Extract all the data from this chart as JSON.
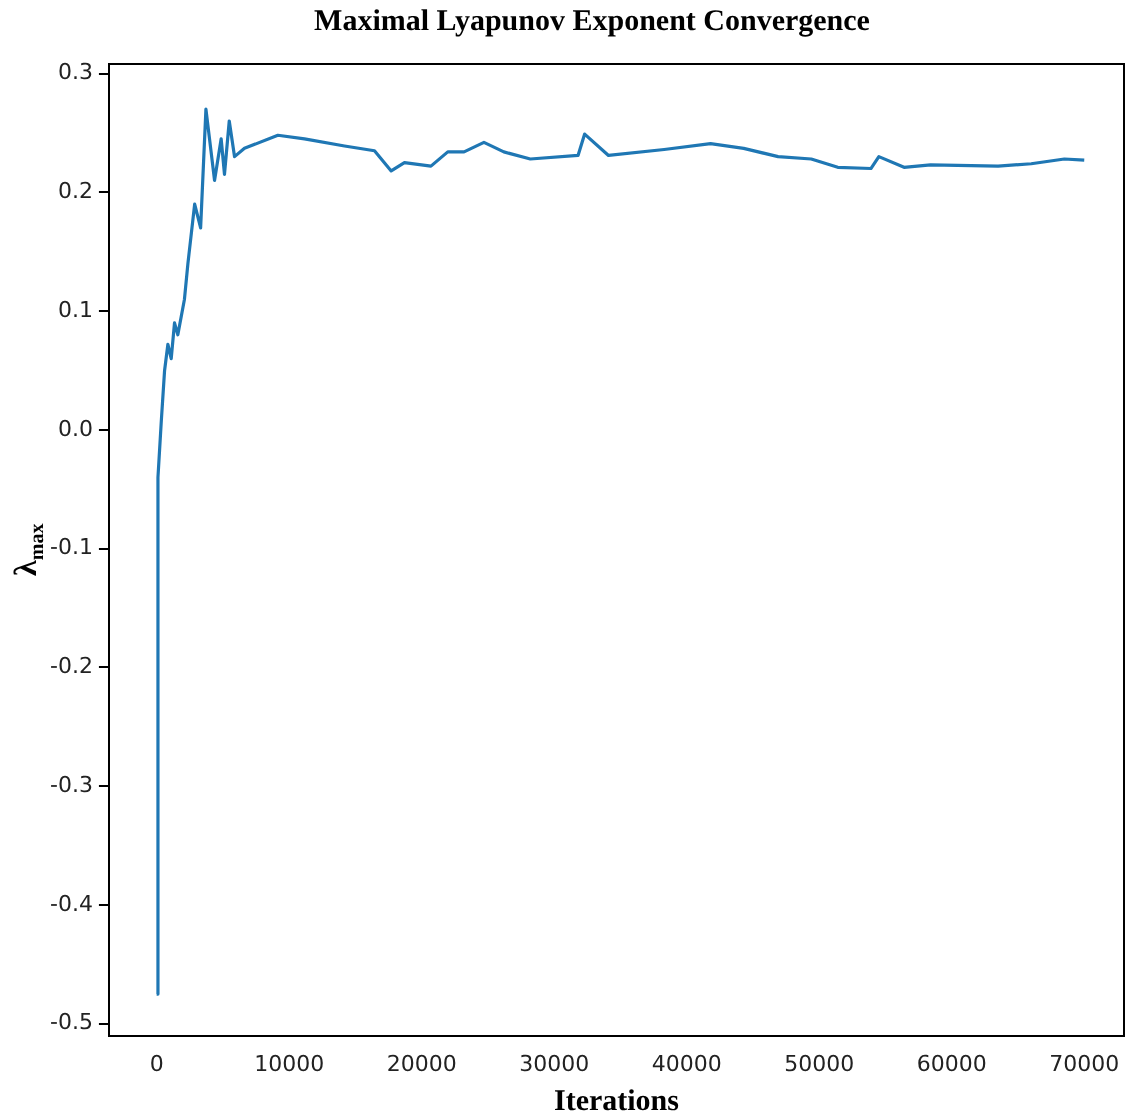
{
  "chart_data": {
    "type": "line",
    "title": "Maximal Lyapunov Exponent Convergence",
    "xlabel": "Iterations",
    "ylabel": "λ$_{max}$",
    "x": [
      0,
      100,
      350,
      600,
      850,
      1100,
      1350,
      1600,
      2100,
      2360,
      2870,
      3320,
      3720,
      4370,
      4870,
      5120,
      5480,
      5880,
      6630,
      9150,
      11160,
      14180,
      16440,
      17700,
      18700,
      20700,
      21970,
      23200,
      24700,
      26200,
      28200,
      31800,
      32300,
      34100,
      38300,
      41800,
      44300,
      46900,
      49400,
      51400,
      53900,
      54500,
      56400,
      58400,
      63500,
      66000,
      68500,
      70000
    ],
    "series": [
      {
        "color": "#1f77b4",
        "values": [
          -0.475,
          -0.04,
          0.007,
          0.05,
          0.072,
          0.06,
          0.09,
          0.08,
          0.11,
          0.14,
          0.19,
          0.17,
          0.27,
          0.21,
          0.245,
          0.215,
          0.26,
          0.23,
          0.237,
          0.248,
          0.245,
          0.239,
          0.235,
          0.218,
          0.225,
          0.222,
          0.234,
          0.234,
          0.242,
          0.234,
          0.228,
          0.231,
          0.249,
          0.231,
          0.236,
          0.241,
          0.237,
          0.23,
          0.228,
          0.221,
          0.22,
          0.23,
          0.221,
          0.223,
          0.222,
          0.224,
          0.228,
          0.227
        ]
      }
    ],
    "xlim": [
      -3600,
      73000
    ],
    "xticks": [
      0,
      10000,
      20000,
      30000,
      40000,
      50000,
      60000,
      70000
    ],
    "ylim": [
      -0.51,
      0.308
    ],
    "yticks": [
      -0.5,
      -0.4,
      -0.3,
      -0.2,
      -0.1,
      {
        "value": 0,
        "label": "0.0"
      },
      0.1,
      0.2,
      0.3
    ],
    "grid": false,
    "legend": false,
    "marker": "none",
    "line_style": "solid"
  }
}
